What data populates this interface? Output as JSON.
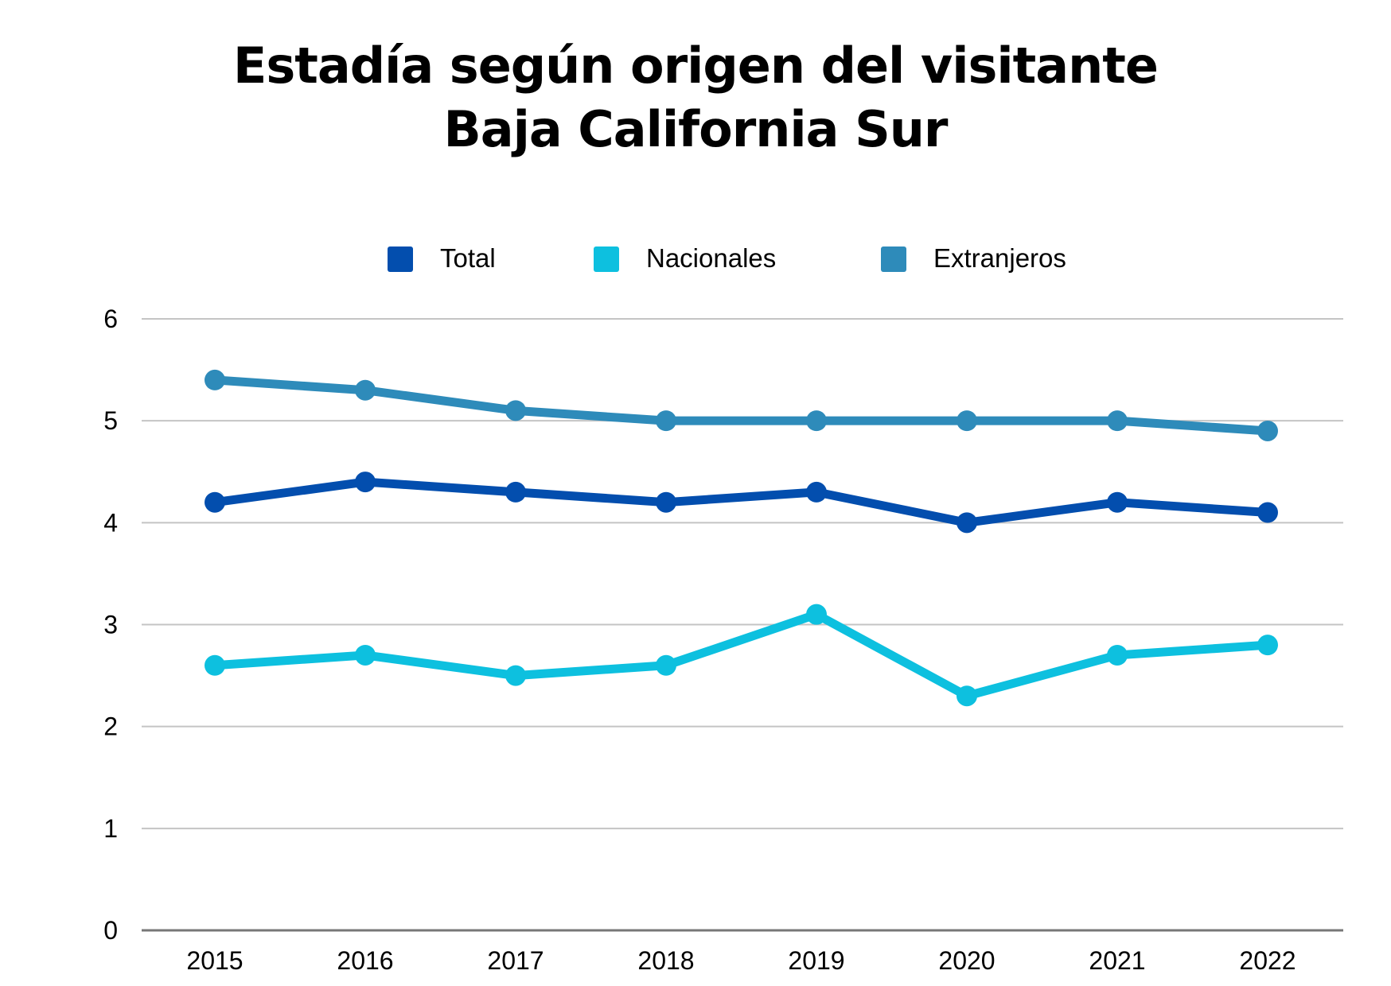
{
  "chart_data": {
    "type": "line",
    "title": "Estadía según origen del visitante",
    "subtitle": "Baja California Sur",
    "xlabel": "",
    "ylabel": "",
    "categories": [
      "2015",
      "2016",
      "2017",
      "2018",
      "2019",
      "2020",
      "2021",
      "2022"
    ],
    "ylim": [
      0,
      6
    ],
    "yticks": [
      "0",
      "1",
      "2",
      "3",
      "4",
      "5",
      "6"
    ],
    "grid": true,
    "legend_position": "top-center",
    "series": [
      {
        "name": "Total",
        "color": "#034EAE",
        "values": [
          4.2,
          4.4,
          4.3,
          4.2,
          4.3,
          4.0,
          4.2,
          4.1
        ]
      },
      {
        "name": "Nacionales",
        "color": "#0DC0DF",
        "values": [
          2.6,
          2.7,
          2.5,
          2.6,
          3.1,
          2.3,
          2.7,
          2.8
        ]
      },
      {
        "name": "Extranjeros",
        "color": "#2E8BBA",
        "values": [
          5.4,
          5.3,
          5.1,
          5.0,
          5.0,
          5.0,
          5.0,
          4.9
        ]
      }
    ]
  }
}
